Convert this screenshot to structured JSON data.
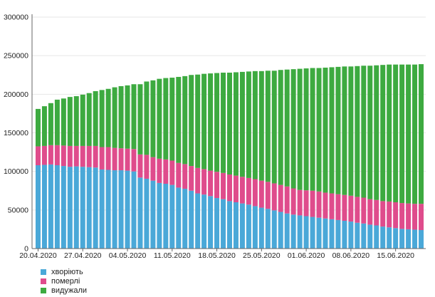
{
  "chart_data": {
    "type": "bar",
    "stacked": true,
    "title": "",
    "xlabel": "",
    "ylabel": "",
    "ylim": [
      0,
      300000
    ],
    "yticks": [
      0,
      50000,
      100000,
      150000,
      200000,
      250000,
      300000
    ],
    "ytick_labels": [
      "0",
      "50000",
      "100000",
      "150000",
      "200000",
      "250000",
      "300000"
    ],
    "grid": true,
    "legend_position": "bottom-left",
    "categories": [
      "20.04.2020",
      "21.04.2020",
      "22.04.2020",
      "23.04.2020",
      "24.04.2020",
      "25.04.2020",
      "26.04.2020",
      "27.04.2020",
      "28.04.2020",
      "29.04.2020",
      "30.04.2020",
      "01.05.2020",
      "02.05.2020",
      "03.05.2020",
      "04.05.2020",
      "05.05.2020",
      "06.05.2020",
      "07.05.2020",
      "08.05.2020",
      "09.05.2020",
      "10.05.2020",
      "11.05.2020",
      "12.05.2020",
      "13.05.2020",
      "14.05.2020",
      "15.05.2020",
      "16.05.2020",
      "17.05.2020",
      "18.05.2020",
      "19.05.2020",
      "20.05.2020",
      "21.05.2020",
      "22.05.2020",
      "23.05.2020",
      "24.05.2020",
      "25.05.2020",
      "26.05.2020",
      "27.05.2020",
      "28.05.2020",
      "29.05.2020",
      "30.05.2020",
      "31.05.2020",
      "01.06.2020",
      "02.06.2020",
      "03.06.2020",
      "04.06.2020",
      "05.06.2020",
      "06.06.2020",
      "07.06.2020",
      "08.06.2020",
      "09.06.2020",
      "10.06.2020",
      "11.06.2020",
      "12.06.2020",
      "13.06.2020",
      "14.06.2020",
      "15.06.2020",
      "16.06.2020",
      "17.06.2020",
      "18.06.2020",
      "19.06.2020"
    ],
    "xtick_labels": [
      "20.04.2020",
      "27.04.2020",
      "04.05.2020",
      "11.05.2020",
      "18.05.2020",
      "25.05.2020",
      "01.06.2020",
      "08.06.2020",
      "15.06.2020"
    ],
    "series": [
      {
        "name": "хворіють",
        "color": "#4aa8d8",
        "values": [
          108000,
          108500,
          109000,
          108000,
          107000,
          106000,
          106500,
          106000,
          105500,
          105000,
          102500,
          102000,
          101500,
          101500,
          101000,
          100000,
          92000,
          90500,
          88000,
          85000,
          84000,
          82500,
          79000,
          77500,
          75000,
          71500,
          70000,
          68000,
          65500,
          64000,
          61500,
          60000,
          58500,
          57000,
          55000,
          53000,
          51500,
          49500,
          47500,
          45500,
          44000,
          43000,
          42000,
          41000,
          40000,
          39000,
          38000,
          37000,
          36000,
          35000,
          33500,
          32500,
          31000,
          30000,
          28500,
          27500,
          26500,
          25500,
          25000,
          24500,
          24000
        ]
      },
      {
        "name": "померлі",
        "color": "#df4c8c",
        "values": [
          24500,
          24500,
          25000,
          26000,
          26500,
          27000,
          26500,
          27000,
          27500,
          28000,
          29000,
          29500,
          29000,
          28500,
          28500,
          29000,
          30000,
          31000,
          30500,
          31500,
          31500,
          31500,
          32000,
          32000,
          32000,
          33000,
          33000,
          33000,
          34000,
          34000,
          34500,
          34500,
          34500,
          34500,
          35000,
          35000,
          35000,
          35000,
          35000,
          35000,
          34000,
          33000,
          33500,
          34000,
          34000,
          33500,
          33500,
          33500,
          33500,
          33500,
          33500,
          33500,
          33000,
          33000,
          33000,
          33500,
          33500,
          33500,
          33500,
          33500,
          34000
        ]
      },
      {
        "name": "видужали",
        "color": "#3daa40",
        "values": [
          48500,
          51500,
          54500,
          59000,
          61000,
          63500,
          64500,
          66500,
          68500,
          71000,
          74000,
          75500,
          78500,
          80500,
          82000,
          84000,
          91000,
          95000,
          99500,
          103500,
          105500,
          107500,
          111500,
          114000,
          118000,
          121000,
          123500,
          126000,
          128000,
          130000,
          132000,
          134000,
          136000,
          138000,
          140000,
          142000,
          144000,
          146000,
          149000,
          151500,
          154500,
          157000,
          158000,
          159000,
          160000,
          162000,
          163500,
          165000,
          166500,
          167500,
          169500,
          171000,
          173000,
          174500,
          176500,
          177500,
          178500,
          179500,
          180000,
          180500,
          181000
        ]
      }
    ]
  }
}
